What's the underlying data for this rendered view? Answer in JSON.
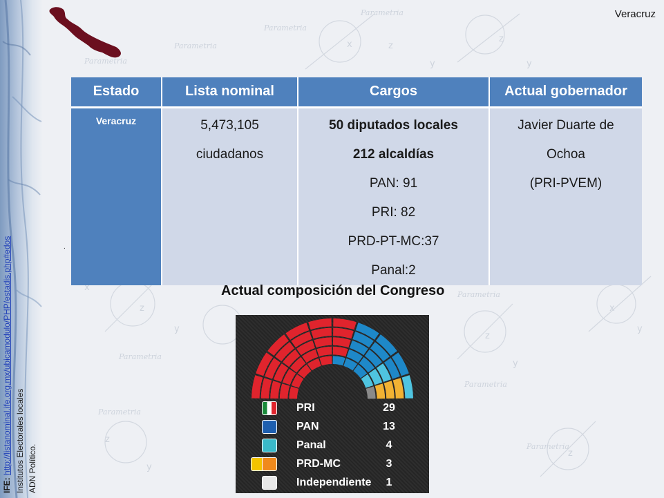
{
  "header": {
    "state_label": "Veracruz"
  },
  "watermark_word": "Parametria",
  "sources": {
    "label": "IFE:",
    "url": "http://listanominal.ife.org.mx/ubicamodulo/PHP/estadis.php#edos",
    "line2": "Institutos Electorales locales",
    "line3": "ADN Político."
  },
  "table": {
    "headers": [
      "Estado",
      "Lista nominal",
      "Cargos",
      "Actual gobernador"
    ],
    "estado": "Veracruz",
    "lista_nominal": [
      "5,473,105",
      "ciudadanos"
    ],
    "cargos": [
      "50 diputados locales",
      "212 alcaldías",
      "PAN: 91",
      "PRI: 82",
      "PRD-PT-MC:37",
      "Panal:2"
    ],
    "gobernador": [
      "Javier Duarte de",
      "Ochoa",
      "(PRI-PVEM)"
    ]
  },
  "stray_mark": ".",
  "congress": {
    "title": "Actual composición del Congreso",
    "parties": [
      {
        "name": "PRI",
        "seats": "29",
        "color": "#e0242d",
        "icon": "pri-logo-icon"
      },
      {
        "name": "PAN",
        "seats": "13",
        "color": "#1e88c8",
        "icon": "pan-logo-icon"
      },
      {
        "name": "Panal",
        "seats": "4",
        "color": "#4fc4e0",
        "icon": "panal-logo-icon"
      },
      {
        "name": "PRD-MC",
        "seats": "3",
        "color": "#f2b233",
        "icon": "prd-mc-logo-icon"
      },
      {
        "name": "Independiente",
        "seats": "1",
        "color": "#8a8a8a",
        "icon": "independent-icon"
      }
    ]
  },
  "colors": {
    "header_blue": "#4f81bd",
    "cell_light": "#d0d8e8",
    "page_bg": "#eef0f4"
  }
}
